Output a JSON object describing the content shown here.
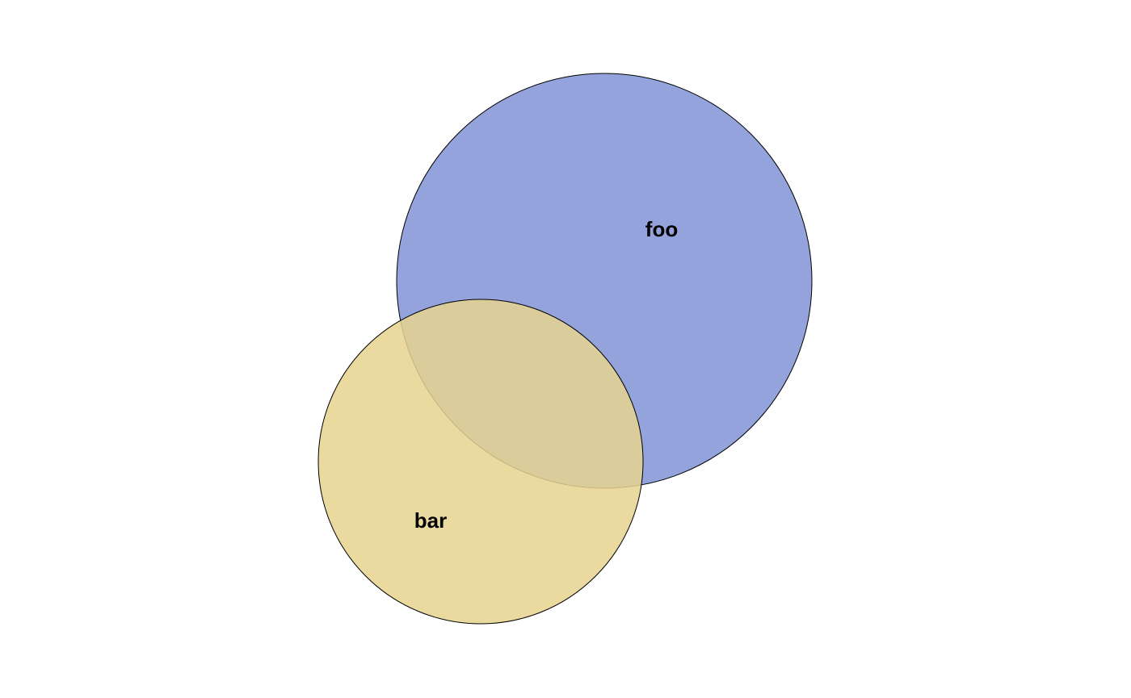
{
  "diagram": {
    "type": "venn",
    "sets": [
      {
        "label": "foo",
        "color": "#8193d6"
      },
      {
        "label": "bar",
        "color": "#e6d48f"
      }
    ],
    "fill_opacity": 0.85,
    "overlap_color": "#c8c093",
    "outline_color": "#000000"
  }
}
